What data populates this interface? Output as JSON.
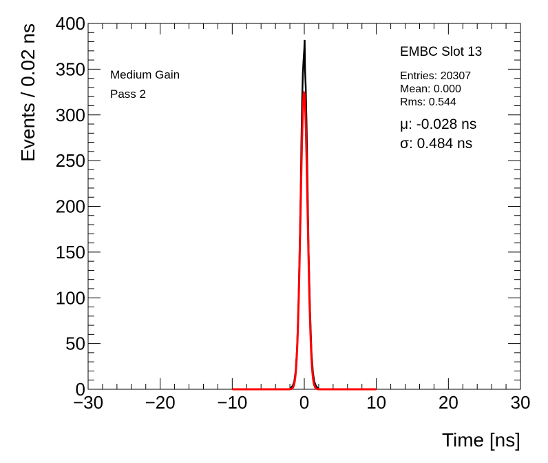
{
  "chart_data": {
    "type": "line",
    "xlabel": "Time [ns]",
    "ylabel": "Events / 0.02 ns",
    "xlim": [
      -30,
      30
    ],
    "ylim": [
      0,
      400
    ],
    "x_ticks": [
      -30,
      -20,
      -10,
      0,
      10,
      20,
      30
    ],
    "x_tick_labels": [
      "−30",
      "−20",
      "−10",
      "0",
      "10",
      "20",
      "30"
    ],
    "y_ticks": [
      0,
      50,
      100,
      150,
      200,
      250,
      300,
      350,
      400
    ],
    "y_tick_labels": [
      "0",
      "50",
      "100",
      "150",
      "200",
      "250",
      "300",
      "350",
      "400"
    ],
    "grid": false,
    "series": [
      {
        "kind": "histogram",
        "color": "#000000",
        "x": [
          -2.0,
          -1.8,
          -1.6,
          -1.4,
          -1.2,
          -1.0,
          -0.8,
          -0.6,
          -0.5,
          -0.4,
          -0.3,
          -0.2,
          -0.1,
          0.0,
          0.05,
          0.1,
          0.2,
          0.3,
          0.4,
          0.5,
          0.6,
          0.8,
          1.0,
          1.2,
          1.4,
          1.6,
          1.8,
          2.0,
          3.0
        ],
        "values": [
          0,
          2,
          4,
          8,
          20,
          45,
          95,
          170,
          215,
          270,
          315,
          345,
          360,
          372,
          382,
          350,
          330,
          295,
          250,
          200,
          150,
          85,
          40,
          18,
          8,
          4,
          2,
          0,
          0
        ]
      },
      {
        "kind": "fit",
        "color": "#ff0000",
        "x_range": [
          -10,
          10
        ],
        "mu": -0.028,
        "sigma": 0.484,
        "amplitude": 325
      }
    ],
    "annotations": {
      "left": [
        "Medium Gain",
        "Pass 2"
      ],
      "title": "EMBC Slot 13",
      "stats": [
        "Entries: 20307",
        "Mean: 0.000",
        "Rms: 0.544"
      ],
      "fit": [
        "μ: -0.028 ns",
        "σ: 0.484 ns"
      ]
    }
  }
}
